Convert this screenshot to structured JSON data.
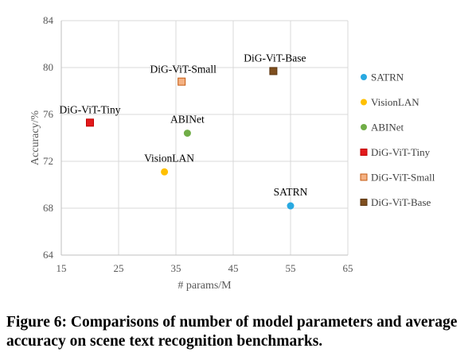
{
  "chart_data": {
    "type": "scatter",
    "xlabel": "# params/M",
    "ylabel": "Accuracy/%",
    "xlim": [
      15,
      65
    ],
    "ylim": [
      64,
      84
    ],
    "xticks": [
      15,
      25,
      35,
      45,
      55,
      65
    ],
    "yticks": [
      64,
      68,
      72,
      76,
      80,
      84
    ],
    "grid": true,
    "legend_position": "right",
    "series": [
      {
        "name": "SATRN",
        "label": "SATRN",
        "x": 55,
        "y": 68.2,
        "marker": "circle",
        "color": "#29a9e1"
      },
      {
        "name": "VisionLAN",
        "label": "VisionLAN",
        "x": 33,
        "y": 71.1,
        "marker": "circle",
        "color": "#ffc000"
      },
      {
        "name": "ABINet",
        "label": "ABINet",
        "x": 37,
        "y": 74.4,
        "marker": "circle",
        "color": "#70ad47"
      },
      {
        "name": "DiG-ViT-Tiny",
        "label": "DiG-ViT-Tiny",
        "x": 20,
        "y": 75.3,
        "marker": "square",
        "color": "#e31a1c",
        "stroke": "#c00000"
      },
      {
        "name": "DiG-ViT-Small",
        "label": "DiG-ViT-Small",
        "x": 36,
        "y": 78.8,
        "marker": "square",
        "color": "#f4b183",
        "stroke": "#c55a11"
      },
      {
        "name": "DiG-ViT-Base",
        "label": "DiG-ViT-Base",
        "x": 52,
        "y": 79.7,
        "marker": "square",
        "color": "#7f4f1f",
        "stroke": "#5a3510"
      }
    ]
  },
  "caption": "Figure 6: Comparisons of number of model parameters and average accuracy on scene text recognition benchmarks."
}
